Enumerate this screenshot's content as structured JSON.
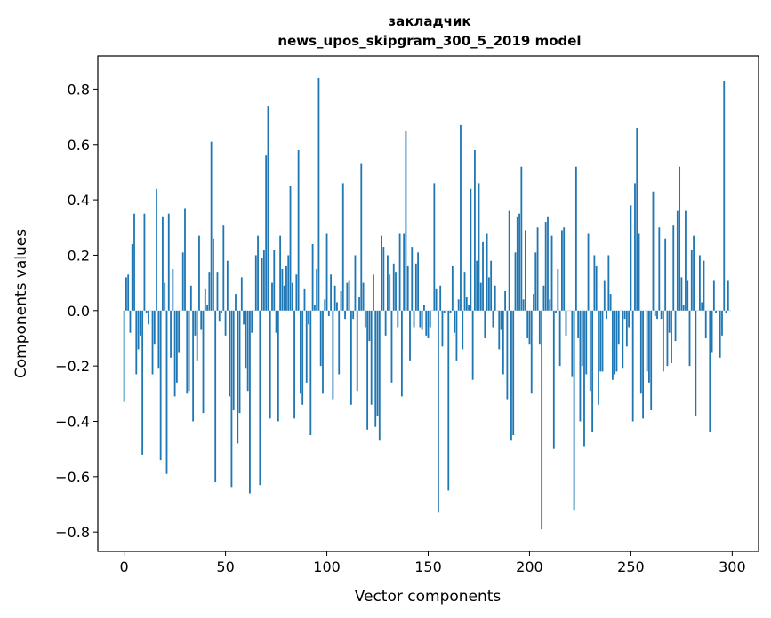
{
  "chart_data": {
    "type": "bar",
    "title": "закладчик",
    "subtitle": "news_upos_skipgram_300_5_2019 model",
    "xlabel": "Vector components",
    "ylabel": "Components values",
    "xlim": [
      -13,
      313
    ],
    "ylim": [
      -0.87,
      0.92
    ],
    "xticks": [
      0,
      50,
      100,
      150,
      200,
      250,
      300
    ],
    "yticks": [
      -0.8,
      -0.6,
      -0.4,
      -0.2,
      0.0,
      0.2,
      0.4,
      0.6,
      0.8
    ],
    "bar_color": "#1f77b4",
    "grid": false,
    "values": [
      -0.33,
      0.12,
      0.13,
      -0.08,
      0.24,
      0.35,
      -0.23,
      -0.14,
      -0.09,
      -0.52,
      0.35,
      -0.01,
      -0.05,
      0.0,
      -0.23,
      -0.12,
      0.44,
      -0.21,
      -0.54,
      0.34,
      0.1,
      -0.59,
      0.35,
      -0.17,
      0.15,
      -0.31,
      -0.26,
      -0.15,
      0.0,
      0.21,
      0.37,
      -0.3,
      -0.29,
      0.09,
      -0.4,
      -0.09,
      -0.18,
      0.27,
      -0.07,
      -0.37,
      0.08,
      0.02,
      0.14,
      0.61,
      0.26,
      -0.62,
      0.14,
      -0.04,
      -0.01,
      0.31,
      -0.09,
      0.18,
      -0.31,
      -0.64,
      -0.36,
      0.06,
      -0.48,
      -0.37,
      0.12,
      -0.05,
      -0.21,
      -0.29,
      -0.66,
      -0.08,
      0.0,
      0.2,
      0.27,
      -0.63,
      0.19,
      0.22,
      0.56,
      0.74,
      -0.39,
      0.1,
      0.22,
      -0.08,
      -0.4,
      0.27,
      0.15,
      0.09,
      0.16,
      0.2,
      0.45,
      0.1,
      -0.39,
      0.13,
      0.58,
      -0.3,
      -0.34,
      0.08,
      -0.26,
      -0.05,
      -0.45,
      0.24,
      0.02,
      0.15,
      0.84,
      -0.2,
      -0.3,
      0.04,
      0.28,
      -0.02,
      0.13,
      -0.32,
      0.09,
      0.03,
      -0.23,
      0.07,
      0.46,
      -0.03,
      0.1,
      0.11,
      -0.34,
      -0.03,
      0.2,
      -0.29,
      0.05,
      0.53,
      0.1,
      -0.06,
      -0.43,
      -0.11,
      -0.34,
      0.13,
      -0.42,
      -0.38,
      -0.47,
      0.27,
      0.23,
      -0.09,
      0.2,
      0.13,
      -0.26,
      0.17,
      0.14,
      -0.06,
      0.28,
      -0.31,
      0.28,
      0.65,
      0.16,
      -0.18,
      0.23,
      -0.06,
      0.17,
      0.21,
      -0.06,
      -0.07,
      0.02,
      -0.09,
      -0.1,
      -0.06,
      0.0,
      0.46,
      0.08,
      -0.73,
      0.09,
      -0.13,
      -0.01,
      0.0,
      -0.65,
      -0.01,
      0.16,
      -0.08,
      -0.18,
      0.04,
      0.67,
      -0.14,
      0.14,
      0.05,
      0.02,
      0.44,
      -0.25,
      0.58,
      0.18,
      0.46,
      0.1,
      0.25,
      -0.1,
      0.28,
      0.12,
      0.18,
      -0.06,
      0.09,
      0.0,
      -0.14,
      -0.07,
      -0.23,
      0.07,
      -0.32,
      0.36,
      -0.47,
      -0.45,
      0.21,
      0.34,
      0.35,
      0.52,
      0.04,
      0.29,
      -0.1,
      -0.12,
      -0.3,
      0.06,
      0.21,
      0.3,
      -0.12,
      -0.79,
      0.09,
      0.32,
      0.34,
      0.04,
      0.27,
      -0.5,
      -0.01,
      0.15,
      -0.2,
      0.29,
      0.3,
      -0.09,
      0.0,
      0.0,
      -0.24,
      -0.72,
      0.52,
      -0.1,
      -0.4,
      -0.2,
      -0.49,
      -0.23,
      0.28,
      -0.29,
      -0.44,
      0.2,
      0.16,
      -0.34,
      -0.22,
      -0.22,
      0.11,
      -0.03,
      0.2,
      0.06,
      -0.25,
      -0.23,
      -0.22,
      -0.12,
      0.0,
      -0.21,
      -0.03,
      -0.13,
      -0.06,
      0.38,
      -0.4,
      0.46,
      0.66,
      0.28,
      -0.3,
      -0.39,
      0.0,
      -0.22,
      -0.26,
      -0.36,
      0.43,
      -0.02,
      -0.03,
      0.3,
      -0.03,
      -0.22,
      0.26,
      -0.2,
      -0.08,
      -0.19,
      0.31,
      -0.11,
      0.36,
      0.52,
      0.12,
      0.02,
      0.36,
      0.11,
      -0.2,
      0.22,
      0.27,
      -0.38,
      0.0,
      0.2,
      0.03,
      0.18,
      -0.1,
      0.0,
      -0.44,
      -0.15,
      0.11,
      -0.01,
      0.0,
      -0.17,
      -0.09,
      0.83,
      -0.01,
      0.11,
      0.0
    ]
  }
}
